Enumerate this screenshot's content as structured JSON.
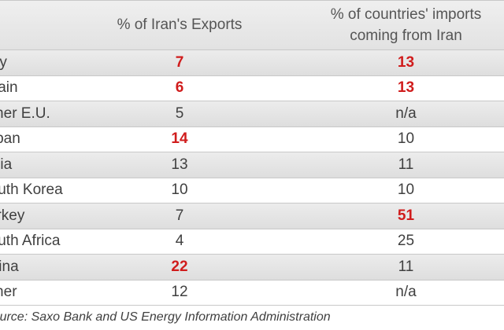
{
  "chart_data": {
    "type": "table",
    "columns": [
      "",
      "% of Iran's Exports",
      "% of countries' imports coming from Iran"
    ],
    "header_col2_lines": [
      "% of countries' imports",
      "coming from Iran"
    ],
    "rows": [
      {
        "label": "Italy",
        "exports": "7",
        "imports": "13",
        "exports_highlight": true,
        "imports_highlight": true
      },
      {
        "label": "Spain",
        "exports": "6",
        "imports": "13",
        "exports_highlight": true,
        "imports_highlight": true
      },
      {
        "label": "Other E.U.",
        "exports": "5",
        "imports": "n/a",
        "exports_highlight": false,
        "imports_highlight": false
      },
      {
        "label": "Japan",
        "exports": "14",
        "imports": "10",
        "exports_highlight": true,
        "imports_highlight": false
      },
      {
        "label": "India",
        "exports": "13",
        "imports": "11",
        "exports_highlight": false,
        "imports_highlight": false
      },
      {
        "label": "South Korea",
        "exports": "10",
        "imports": "10",
        "exports_highlight": false,
        "imports_highlight": false
      },
      {
        "label": "Turkey",
        "exports": "7",
        "imports": "51",
        "exports_highlight": false,
        "imports_highlight": true
      },
      {
        "label": "South Africa",
        "exports": "4",
        "imports": "25",
        "exports_highlight": false,
        "imports_highlight": false
      },
      {
        "label": "China",
        "exports": "22",
        "imports": "11",
        "exports_highlight": true,
        "imports_highlight": false
      },
      {
        "label": "Other",
        "exports": "12",
        "imports": "n/a",
        "exports_highlight": false,
        "imports_highlight": false
      }
    ],
    "source": "Source: Saxo Bank and US Energy Information Administration",
    "highlight_color": "#d01c1c"
  }
}
